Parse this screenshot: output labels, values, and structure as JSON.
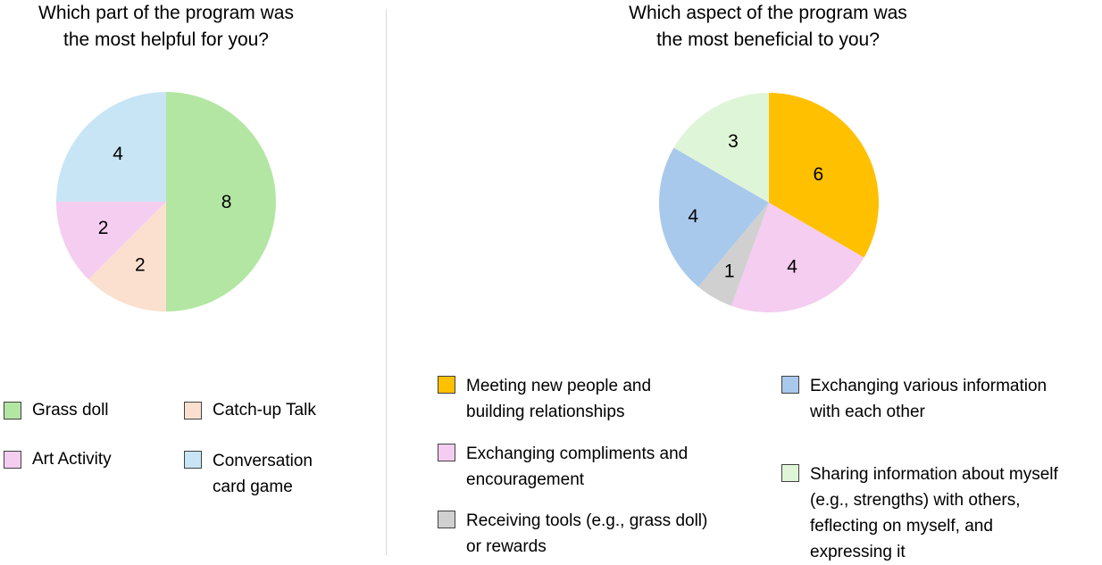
{
  "chart_data": [
    {
      "type": "pie",
      "title": "Which part of the program was\nthe most helpful for you?",
      "legend_position": "bottom",
      "slices": [
        {
          "label": "Grass doll",
          "value": 8,
          "color": "#b3e6a3"
        },
        {
          "label": "Catch-up Talk",
          "value": 2,
          "color": "#fbe0cf"
        },
        {
          "label": "Art Activity",
          "value": 2,
          "color": "#f4cdf0"
        },
        {
          "label": "Conversation\ncard game",
          "value": 4,
          "color": "#c7e5f5"
        }
      ]
    },
    {
      "type": "pie",
      "title": "Which aspect of the program was\nthe most beneficial to you?",
      "legend_position": "bottom",
      "slices": [
        {
          "label": "Meeting new people and\nbuilding relationships",
          "value": 6,
          "color": "#ffc000"
        },
        {
          "label": "Exchanging compliments and\nencouragement",
          "value": 4,
          "color": "#f4cdf0"
        },
        {
          "label": "Receiving tools (e.g., grass doll)\nor rewards",
          "value": 1,
          "color": "#d0d0d0"
        },
        {
          "label": "Exchanging various information\nwith each other",
          "value": 4,
          "color": "#a9c9ec"
        },
        {
          "label": "Sharing information about myself\n(e.g., strengths) with others,\nfeflecting on myself, and\nexpressing it",
          "value": 3,
          "color": "#dff5d7"
        }
      ]
    }
  ]
}
